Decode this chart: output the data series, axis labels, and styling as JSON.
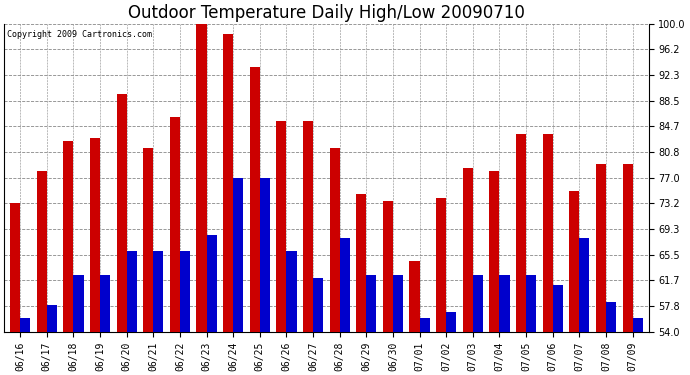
{
  "title": "Outdoor Temperature Daily High/Low 20090710",
  "copyright": "Copyright 2009 Cartronics.com",
  "dates": [
    "06/16",
    "06/17",
    "06/18",
    "06/19",
    "06/20",
    "06/21",
    "06/22",
    "06/23",
    "06/24",
    "06/25",
    "06/26",
    "06/27",
    "06/28",
    "06/29",
    "06/30",
    "07/01",
    "07/02",
    "07/03",
    "07/04",
    "07/05",
    "07/06",
    "07/07",
    "07/08",
    "07/09"
  ],
  "highs": [
    73.2,
    78.0,
    82.5,
    83.0,
    89.5,
    81.5,
    86.0,
    100.0,
    98.5,
    93.5,
    85.5,
    85.5,
    81.5,
    74.5,
    73.5,
    64.5,
    74.0,
    78.5,
    78.0,
    83.5,
    83.5,
    75.0,
    79.0,
    79.0
  ],
  "lows": [
    56.0,
    58.0,
    62.5,
    62.5,
    66.0,
    66.0,
    66.0,
    68.5,
    77.0,
    77.0,
    66.0,
    62.0,
    68.0,
    62.5,
    62.5,
    56.0,
    57.0,
    62.5,
    62.5,
    62.5,
    61.0,
    68.0,
    58.5,
    56.0
  ],
  "high_color": "#cc0000",
  "low_color": "#0000cc",
  "ylim_min": 54.0,
  "ylim_max": 100.0,
  "yticks": [
    54.0,
    57.8,
    61.7,
    65.5,
    69.3,
    73.2,
    77.0,
    80.8,
    84.7,
    88.5,
    92.3,
    96.2,
    100.0
  ],
  "background_color": "#ffffff",
  "grid_color": "#888888",
  "title_fontsize": 12,
  "tick_fontsize": 7,
  "bar_width": 0.38
}
